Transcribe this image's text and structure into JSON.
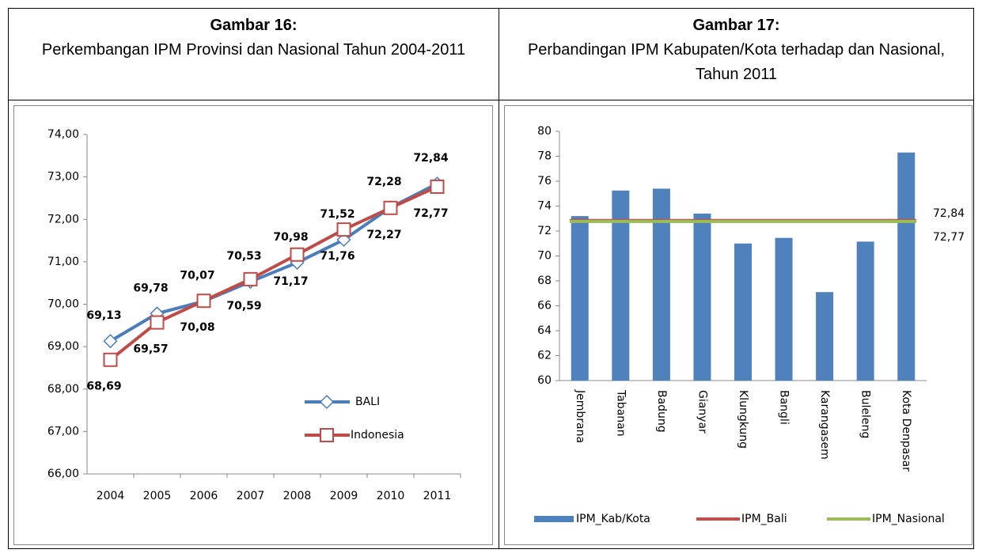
{
  "chart_data": [
    {
      "type": "line",
      "title": "Gambar 16:",
      "subtitle": "Perkembangan IPM Provinsi dan Nasional Tahun 2004-2011",
      "categories": [
        "2004",
        "2005",
        "2006",
        "2007",
        "2008",
        "2009",
        "2010",
        "2011"
      ],
      "series": [
        {
          "name": "BALI",
          "color": "#4a7ebb",
          "marker": "diamond",
          "values": [
            69.13,
            69.78,
            70.07,
            70.53,
            70.98,
            71.52,
            72.28,
            72.84
          ],
          "value_labels": [
            "69,13",
            "69,78",
            "70,07",
            "70,53",
            "70,98",
            "71,52",
            "72,28",
            "72,84"
          ]
        },
        {
          "name": "Indonesia",
          "color": "#be4b48",
          "marker": "square",
          "values": [
            68.69,
            69.57,
            70.08,
            70.59,
            71.17,
            71.76,
            72.27,
            72.77
          ],
          "value_labels": [
            "68,69",
            "69,57",
            "70,08",
            "70,59",
            "71,17",
            "71,76",
            "72,27",
            "72,77"
          ]
        }
      ],
      "ylim": [
        66,
        74
      ],
      "yticks": [
        {
          "value": 66,
          "label": "66,00"
        },
        {
          "value": 67,
          "label": "67,00"
        },
        {
          "value": 68,
          "label": "68,00"
        },
        {
          "value": 69,
          "label": "69,00"
        },
        {
          "value": 70,
          "label": "70,00"
        },
        {
          "value": 71,
          "label": "71,00"
        },
        {
          "value": 72,
          "label": "72,00"
        },
        {
          "value": 73,
          "label": "73,00"
        },
        {
          "value": 74,
          "label": "74,00"
        }
      ],
      "legend": "lower right"
    },
    {
      "type": "bar",
      "title": "Gambar 17:",
      "subtitle": "Perbandingan IPM Kabupaten/Kota terhadap dan Nasional, Tahun 2011",
      "categories": [
        "Jembrana",
        "Tabanan",
        "Badung",
        "Gianyar",
        "Klungkung",
        "Bangli",
        "Karangasem",
        "Buleleng",
        "Kota Denpasar"
      ],
      "series": [
        {
          "name": "IPM_Kab/Kota",
          "color": "#4f81bd",
          "type": "bar",
          "values": [
            73.2,
            75.25,
            75.4,
            73.4,
            71.0,
            71.45,
            67.1,
            71.15,
            78.3
          ]
        },
        {
          "name": "IPM_Bali",
          "color": "#c0504d",
          "type": "hline",
          "value": 72.84,
          "value_label": "72,84"
        },
        {
          "name": "IPM_Nasional",
          "color": "#9bbb59",
          "type": "hline",
          "value": 72.77,
          "value_label": "72,77"
        }
      ],
      "ylim": [
        60,
        80
      ],
      "yticks": [
        60,
        62,
        64,
        66,
        68,
        70,
        72,
        74,
        76,
        78,
        80
      ],
      "legend": "bottom"
    }
  ]
}
